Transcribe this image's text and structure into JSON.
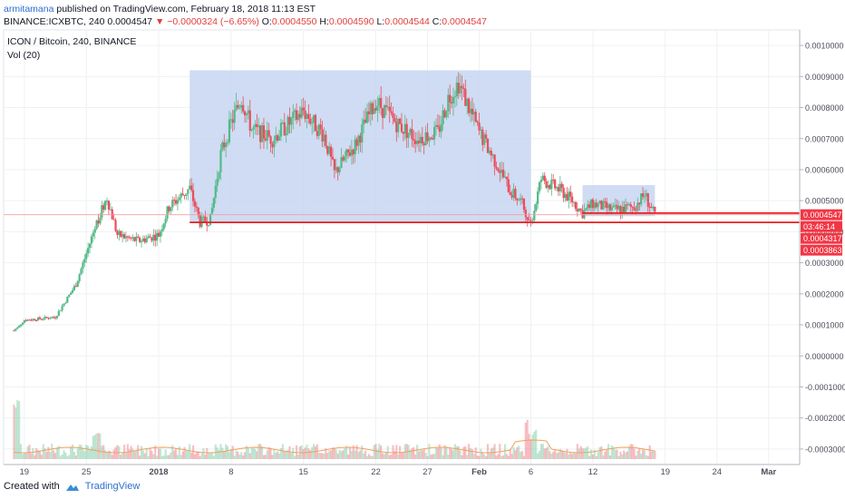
{
  "header": {
    "author": "armitamana",
    "published_text": "published on TradingView.com, February 18, 2018 11:13 EST",
    "symbol": "BINANCE:ICXBTC, 240",
    "last": "0.0004547",
    "change": "▼ −0.0000324 (−6.65%)",
    "o_label": "O:",
    "o_value": "0.0004550",
    "h_label": "H:",
    "h_value": "0.0004590",
    "l_label": "L:",
    "l_value": "0.0004544",
    "c_label": "C:",
    "c_value": "0.0004547"
  },
  "legend": {
    "title": "ICON / Bitcoin, 240, BINANCE",
    "volume": "Vol (20)"
  },
  "footer": {
    "created_with": "Created with",
    "brand": "TradingView"
  },
  "colors": {
    "up": "#53b987",
    "down": "#eb4d5c",
    "zone": "#c7d6f1",
    "support": "#e91e1e",
    "grid": "#eef1f5",
    "price_line": "#f0a0a0",
    "ma": "#f1a15a"
  },
  "chart_data": {
    "type": "candlestick",
    "y_range": [
      -0.00035,
      0.00105
    ],
    "y_ticks": [
      "0.0010000",
      "0.0009000",
      "0.0008000",
      "0.0007000",
      "0.0006000",
      "0.0005000",
      "0.0004000",
      "0.0003000",
      "0.0002000",
      "0.0001000",
      "0.0000000",
      "-0.0001000",
      "-0.0002000",
      "-0.0003000"
    ],
    "x_tick_labels": [
      "19",
      "25",
      "2018",
      "8",
      "15",
      "22",
      "27",
      "Feb",
      "6",
      "12",
      "19",
      "24",
      "Mar"
    ],
    "x_domain_days": [
      "2017-12-17",
      "2018-03-04"
    ],
    "x_tick_dates": [
      "2017-12-19",
      "2017-12-25",
      "2018-01-01",
      "2018-01-08",
      "2018-01-15",
      "2018-01-22",
      "2018-01-27",
      "2018-02-01",
      "2018-02-06",
      "2018-02-12",
      "2018-02-19",
      "2018-02-24",
      "2018-03-01"
    ],
    "price_path": [
      [
        "2017-12-18",
        8.2e-05
      ],
      [
        "2017-12-19",
        0.000115
      ],
      [
        "2017-12-22",
        0.000125
      ],
      [
        "2017-12-24",
        0.00023
      ],
      [
        "2017-12-26",
        0.00043
      ],
      [
        "2017-12-27",
        0.00051
      ],
      [
        "2017-12-28",
        0.00039
      ],
      [
        "2017-12-30",
        0.00037
      ],
      [
        "2018-01-01",
        0.00039
      ],
      [
        "2018-01-02",
        0.00048
      ],
      [
        "2018-01-04",
        0.00054
      ],
      [
        "2018-01-05",
        0.00043
      ],
      [
        "2018-01-06",
        0.00044
      ],
      [
        "2018-01-07",
        0.00065
      ],
      [
        "2018-01-08",
        0.00075
      ],
      [
        "2018-01-09",
        0.00083
      ],
      [
        "2018-01-10",
        0.00073
      ],
      [
        "2018-01-12",
        0.0007
      ],
      [
        "2018-01-15",
        0.00079
      ],
      [
        "2018-01-17",
        0.00071
      ],
      [
        "2018-01-18",
        0.00059
      ],
      [
        "2018-01-20",
        0.00068
      ],
      [
        "2018-01-22",
        0.00082
      ],
      [
        "2018-01-24",
        0.00075
      ],
      [
        "2018-01-26",
        0.0007
      ],
      [
        "2018-01-28",
        0.00072
      ],
      [
        "2018-01-29",
        0.00083
      ],
      [
        "2018-01-30",
        0.00088
      ],
      [
        "2018-02-01",
        0.00072
      ],
      [
        "2018-02-03",
        0.0006
      ],
      [
        "2018-02-04",
        0.00053
      ],
      [
        "2018-02-05",
        0.0005
      ],
      [
        "2018-02-06",
        0.00043
      ],
      [
        "2018-02-07",
        0.00057
      ],
      [
        "2018-02-08",
        0.00055
      ],
      [
        "2018-02-09",
        0.00053
      ],
      [
        "2018-02-10",
        0.0005
      ],
      [
        "2018-02-11",
        0.00046
      ],
      [
        "2018-02-12",
        0.00049
      ],
      [
        "2018-02-14",
        0.00047
      ],
      [
        "2018-02-16",
        0.00048
      ],
      [
        "2018-02-17",
        0.00052
      ],
      [
        "2018-02-18",
        0.00045
      ]
    ],
    "annotations": {
      "range_box_1": {
        "x": [
          "2018-01-04",
          "2018-02-06"
        ],
        "y": [
          0.00043,
          0.00092
        ]
      },
      "range_box_2": {
        "x": [
          "2018-02-11",
          "2018-02-18"
        ],
        "y": [
          0.00045,
          0.00055
        ]
      },
      "support_line_1": {
        "x": [
          "2018-01-04",
          "2018-02-29"
        ],
        "y": 0.00043
      },
      "support_line_2": {
        "x": [
          "2018-02-11",
          "2018-02-29"
        ],
        "y": 0.00046
      }
    },
    "axis_badges": [
      {
        "label": "0.0004547",
        "y": 0.0004547
      },
      {
        "label": "03:46:14",
        "y": 0.00044
      },
      {
        "label": "0.0004317",
        "y": 0.0004317
      },
      {
        "label": "0.0003863",
        "y": 0.0003863
      }
    ]
  }
}
